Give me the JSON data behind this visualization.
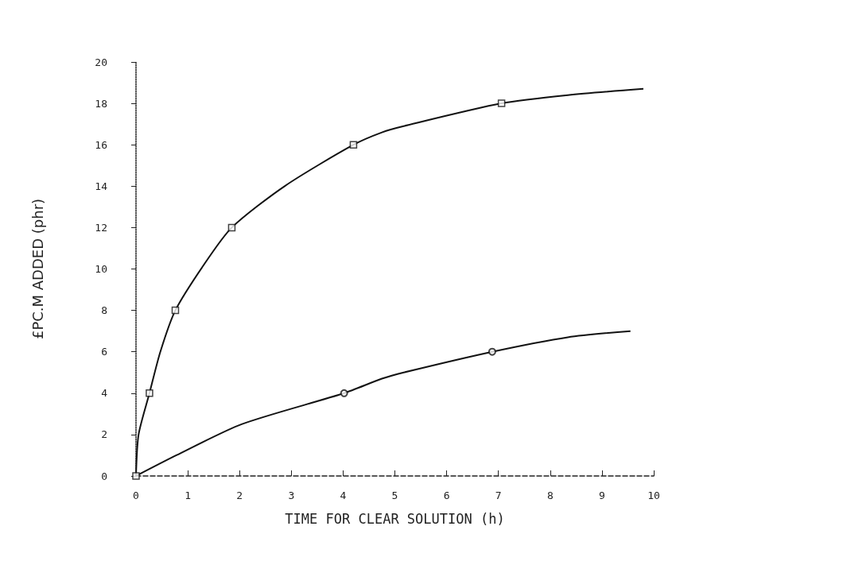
{
  "chart_data": {
    "type": "scatter",
    "xlabel": "TIME FOR CLEAR SOLUTION (h)",
    "ylabel": "£PC.M ADDED (phr)",
    "xlim": [
      0,
      10
    ],
    "xticks": [
      0,
      1,
      2,
      3,
      4,
      5,
      6,
      7,
      8,
      9,
      10
    ],
    "ylim": [
      0,
      20
    ],
    "yticks": [
      0,
      2,
      4,
      6,
      8,
      10,
      12,
      14,
      16,
      18,
      20
    ],
    "grid": false,
    "series": [
      {
        "marker": "circle",
        "color": "#111111",
        "x": [
          4.02,
          6.88
        ],
        "values": [
          4,
          6
        ]
      },
      {
        "marker": "square",
        "color": "#111111",
        "x": [
          0,
          0.26,
          0.76,
          1.85,
          4.2,
          7.06
        ],
        "values": [
          0,
          4,
          8,
          12,
          16,
          18
        ]
      },
      {
        "type": "line",
        "marker": "none",
        "color": "#111111",
        "x": [
          0,
          0.78,
          2.04,
          4.02,
          4.75,
          5.17,
          6.88,
          8.34,
          9.55
        ],
        "values": [
          0,
          1,
          2.5,
          4,
          4.7,
          5,
          6,
          6.7,
          7
        ]
      },
      {
        "type": "line",
        "marker": "none",
        "color": "#111111",
        "x": [
          0,
          0.05,
          0.26,
          0.47,
          0.76,
          1.31,
          1.85,
          2.87,
          4.2,
          4.75,
          5.17,
          7.06,
          8.34,
          9.8
        ],
        "values": [
          0,
          2,
          4,
          6,
          8,
          10.2,
          12,
          14,
          16,
          16.6,
          16.9,
          18,
          18.4,
          18.7
        ]
      }
    ]
  }
}
